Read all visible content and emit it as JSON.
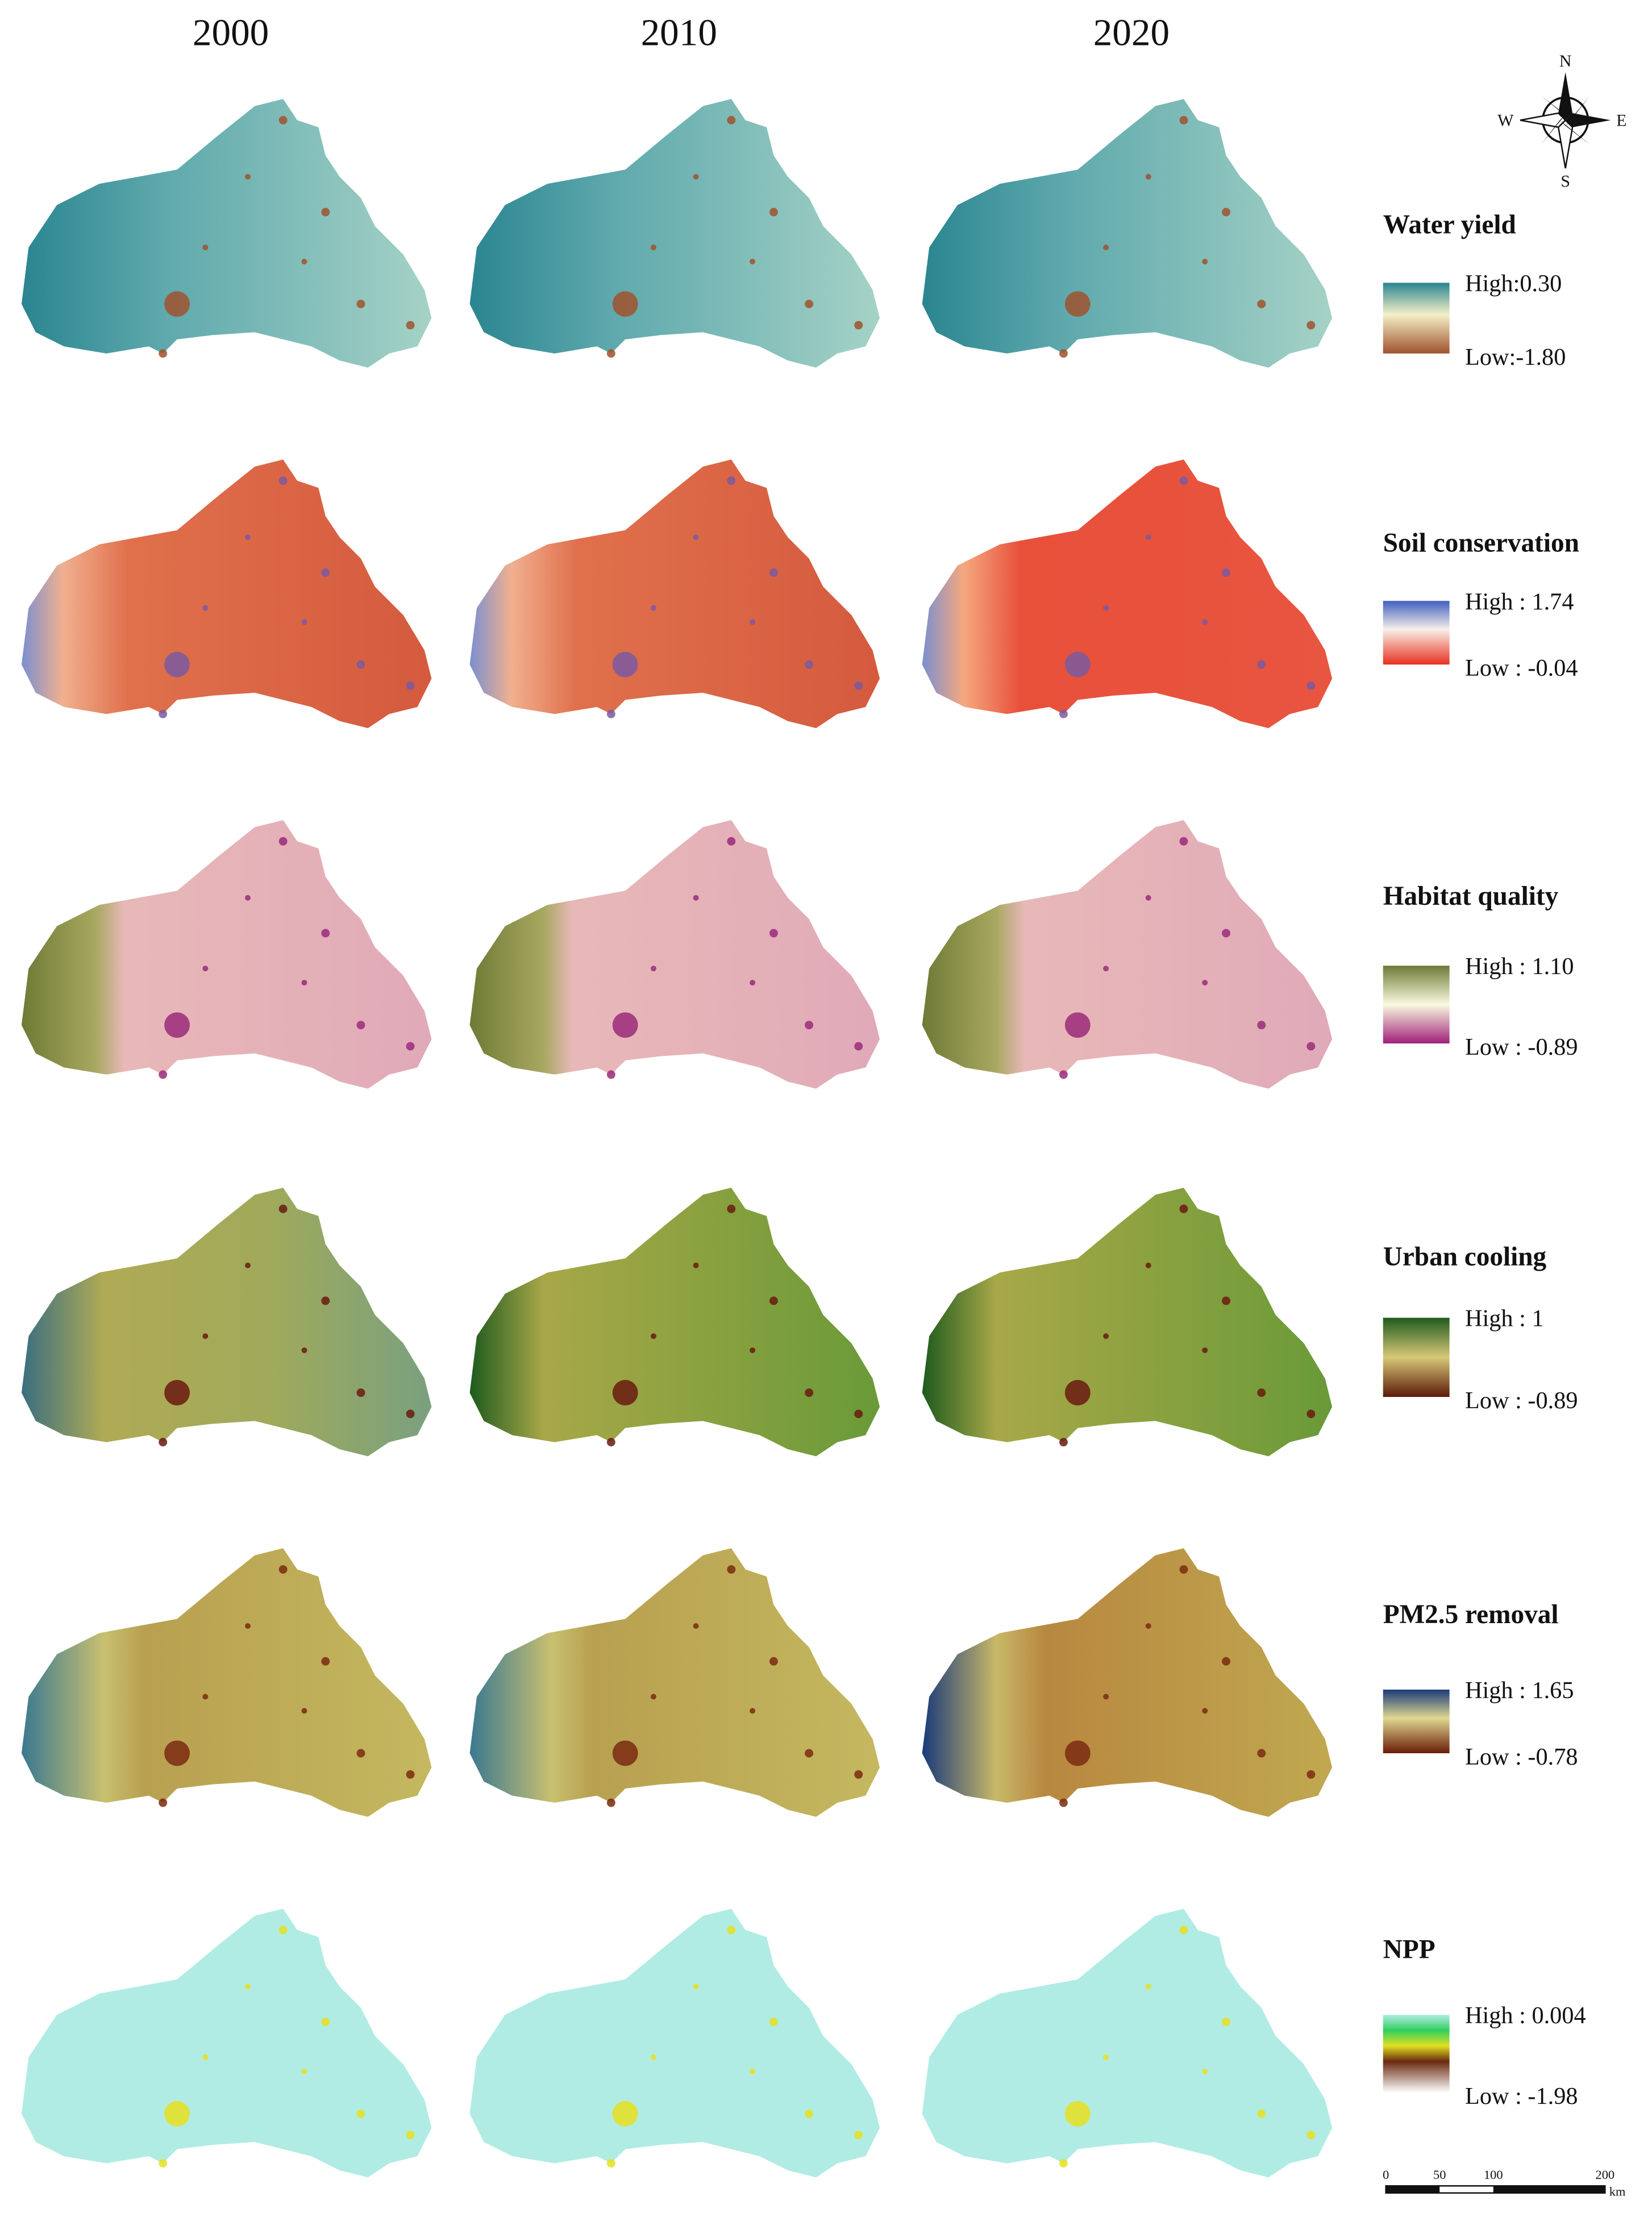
{
  "years": [
    "2000",
    "2010",
    "2020"
  ],
  "compass": {
    "n": "N",
    "s": "S",
    "e": "E",
    "w": "W"
  },
  "legends": [
    {
      "title": "Water yield",
      "high": "High:0.30",
      "low": "Low:-1.80"
    },
    {
      "title": "Soil conservation",
      "high": "High : 1.74",
      "low": "Low : -0.04"
    },
    {
      "title": "Habitat quality",
      "high": "High  : 1.10",
      "low": "Low  : -0.89"
    },
    {
      "title": "Urban cooling",
      "high": "High : 1",
      "low": "Low  : -0.89"
    },
    {
      "title": "PM2.5 removal",
      "high": "High  : 1.65",
      "low": "Low : -0.78"
    },
    {
      "title": "NPP",
      "high": "High  : 0.004",
      "low": "Low  : -1.98"
    }
  ],
  "scale_bar": {
    "ticks": [
      "0",
      "50",
      "100",
      "200"
    ],
    "unit": "km"
  }
}
